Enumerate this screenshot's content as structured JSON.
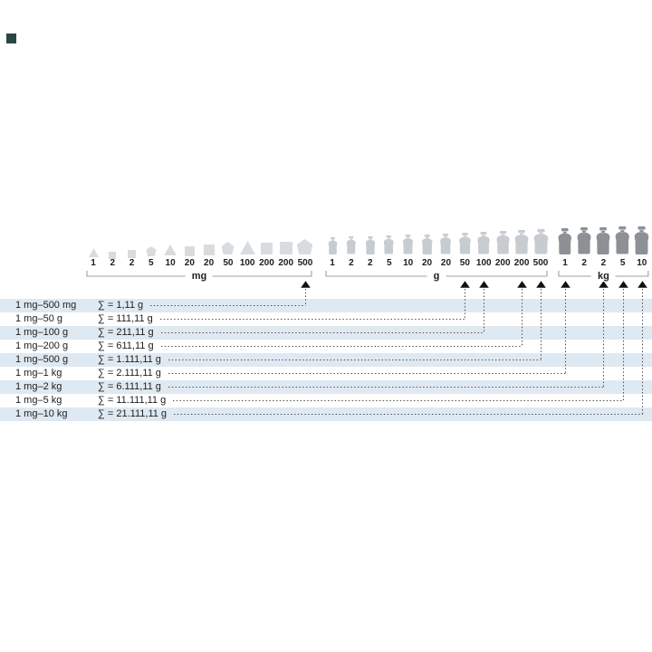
{
  "logo": {
    "swatch_color": "#2a4643"
  },
  "diagram": {
    "groups": [
      {
        "unit": "mg",
        "values": [
          "1",
          "2",
          "2",
          "5",
          "10",
          "20",
          "20",
          "50",
          "100",
          "200",
          "200",
          "500"
        ],
        "shapes": [
          "triangle",
          "square",
          "square",
          "pentagon",
          "triangle",
          "square",
          "square",
          "pentagon",
          "triangle",
          "square",
          "square",
          "pentagon"
        ],
        "color": "#d9dcde"
      },
      {
        "unit": "g",
        "values": [
          "1",
          "2",
          "2",
          "5",
          "10",
          "20",
          "20",
          "50",
          "100",
          "200",
          "200",
          "500"
        ],
        "shapes": [
          "jar",
          "jar",
          "jar",
          "jar",
          "jar",
          "jar",
          "jar",
          "jar",
          "jar",
          "jar",
          "jar",
          "jar"
        ],
        "color": "#c7ccd1"
      },
      {
        "unit": "kg",
        "values": [
          "1",
          "2",
          "2",
          "5",
          "10"
        ],
        "shapes": [
          "jar",
          "jar",
          "jar",
          "jar",
          "jar"
        ],
        "color": "#8d9196"
      }
    ],
    "rows": [
      {
        "range": "1 mg–500 mg",
        "sum": "∑ = 1,11 g",
        "target": {
          "unit": "mg",
          "index": 11
        }
      },
      {
        "range": "1 mg–50 g",
        "sum": "∑ = 111,11 g",
        "target": {
          "unit": "g",
          "index": 7
        }
      },
      {
        "range": "1 mg–100 g",
        "sum": "∑ = 211,11 g",
        "target": {
          "unit": "g",
          "index": 8
        }
      },
      {
        "range": "1 mg–200 g",
        "sum": "∑ = 611,11 g",
        "target": {
          "unit": "g",
          "index": 10
        }
      },
      {
        "range": "1 mg–500 g",
        "sum": "∑ = 1.111,11 g",
        "target": {
          "unit": "g",
          "index": 11
        }
      },
      {
        "range": "1 mg–1 kg",
        "sum": "∑ = 2.111,11 g",
        "target": {
          "unit": "kg",
          "index": 0
        }
      },
      {
        "range": "1 mg–2 kg",
        "sum": "∑ = 6.111,11 g",
        "target": {
          "unit": "kg",
          "index": 2
        }
      },
      {
        "range": "1 mg–5 kg",
        "sum": "∑ = 11.111,11 g",
        "target": {
          "unit": "kg",
          "index": 3
        }
      },
      {
        "range": "1 mg–10 kg",
        "sum": "∑ = 21.111,11 g",
        "target": {
          "unit": "kg",
          "index": 4
        }
      }
    ],
    "colors": {
      "stripe": "#dee9f2",
      "text": "#1d1d1d",
      "dotted_line": "#4a4a4a",
      "bracket": "#9ba1a6",
      "arrow": "#111111"
    }
  }
}
